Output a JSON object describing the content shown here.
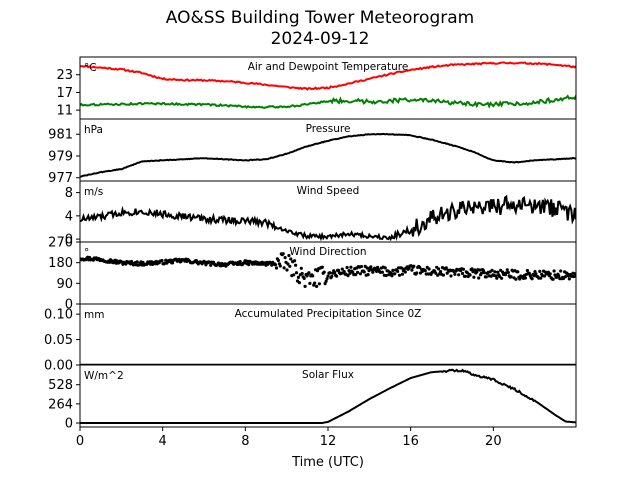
{
  "chart_data": [
    {
      "type": "line",
      "title": "AO&SS Building Tower Meteorogram",
      "subtitle": "2024-09-12",
      "panel_title": "Air and Dewpoint Temperature",
      "unit": "°C",
      "xlabel": "Time (UTC)",
      "xlim": [
        0,
        24
      ],
      "ylim": [
        8,
        29
      ],
      "yticks": [
        11,
        17,
        23
      ],
      "grid": false,
      "colors": [
        "#ff0000",
        "#008000"
      ],
      "x": [
        0,
        1,
        2,
        3,
        4,
        5,
        6,
        7,
        8,
        9,
        10,
        11,
        12,
        13,
        14,
        15,
        16,
        17,
        18,
        19,
        20,
        21,
        22,
        23,
        24
      ],
      "series": [
        {
          "values": [
            26,
            25.4,
            24.8,
            23.6,
            21.6,
            21.2,
            21.1,
            20.8,
            20.3,
            19.6,
            18.8,
            18.2,
            18.6,
            20,
            21.6,
            23.2,
            24.6,
            25.6,
            26.3,
            26.6,
            26.9,
            27,
            26.8,
            26.4,
            25.6
          ]
        },
        {
          "values": [
            12.8,
            12.9,
            13,
            13.2,
            13.2,
            13,
            12.9,
            12.6,
            12.2,
            12,
            12.2,
            12.9,
            14.1,
            14.2,
            13.9,
            14.1,
            14.6,
            14.1,
            13.5,
            12.9,
            12.8,
            13.2,
            13.6,
            14.6,
            15.4
          ]
        }
      ]
    },
    {
      "type": "line",
      "panel_title": "Pressure",
      "unit": "hPa",
      "xlim": [
        0,
        24
      ],
      "ylim": [
        976.7,
        982.4
      ],
      "yticks": [
        977,
        979,
        981
      ],
      "color": "#000000",
      "x": [
        0,
        1,
        2,
        3,
        4,
        5,
        6,
        7,
        8,
        9,
        10,
        11,
        12,
        13,
        14,
        15,
        16,
        17,
        18,
        19,
        20,
        21,
        22,
        23,
        24
      ],
      "values": [
        977.1,
        977.5,
        977.8,
        978.5,
        978.6,
        978.7,
        978.8,
        978.7,
        978.6,
        978.7,
        979.2,
        979.9,
        980.4,
        980.8,
        981.0,
        981.0,
        980.9,
        980.5,
        980.0,
        979.4,
        978.6,
        978.4,
        978.6,
        978.7,
        978.8
      ]
    },
    {
      "type": "line",
      "panel_title": "Wind Speed",
      "unit": "m/s",
      "xlim": [
        0,
        24
      ],
      "ylim": [
        -0.5,
        10
      ],
      "yticks": [
        0,
        4,
        8
      ],
      "color": "#000000",
      "x": [
        0,
        1,
        2,
        3,
        4,
        5,
        6,
        7,
        8,
        9,
        10,
        11,
        12,
        13,
        14,
        15,
        16,
        17,
        18,
        19,
        20,
        21,
        22,
        23,
        24
      ],
      "values": [
        3.4,
        3.8,
        4.6,
        4.8,
        4.3,
        3.9,
        3.5,
        3.3,
        3.1,
        2.9,
        1.4,
        0.5,
        0.4,
        0.9,
        0.5,
        0.3,
        1.6,
        3.3,
        4.6,
        5.5,
        5.6,
        5.9,
        5.6,
        5.3,
        4.3
      ]
    },
    {
      "type": "scatter",
      "panel_title": "Wind Direction",
      "unit": "°",
      "xlim": [
        0,
        24
      ],
      "ylim": [
        0,
        270
      ],
      "yticks": [
        0,
        90,
        180,
        270
      ],
      "color": "#000000",
      "x": [
        0,
        1,
        2,
        3,
        4,
        5,
        6,
        7,
        8,
        9,
        10,
        11,
        12,
        13,
        14,
        15,
        16,
        17,
        18,
        19,
        20,
        21,
        22,
        23,
        24
      ],
      "values": [
        200,
        195,
        180,
        176,
        182,
        190,
        178,
        172,
        180,
        175,
        180,
        102,
        130,
        142,
        145,
        140,
        148,
        142,
        138,
        133,
        131,
        128,
        127,
        125,
        123
      ]
    },
    {
      "type": "area",
      "panel_title": "Accumulated Precipitation Since 0Z",
      "unit": "mm",
      "xlim": [
        0,
        24
      ],
      "ylim": [
        0,
        0.12
      ],
      "yticks": [
        0.0,
        0.05,
        0.1
      ],
      "color": "#000000",
      "x": [
        0,
        24
      ],
      "values": [
        0,
        0
      ]
    },
    {
      "type": "line",
      "panel_title": "Solar Flux",
      "unit": "W/m^2",
      "xlim": [
        0,
        24
      ],
      "ylim": [
        -55,
        800
      ],
      "yticks": [
        0,
        264,
        528
      ],
      "color": "#000000",
      "x": [
        0,
        1,
        2,
        3,
        4,
        5,
        6,
        7,
        8,
        9,
        10,
        11,
        11.7,
        12,
        13,
        14,
        15,
        16,
        17,
        18,
        18.6,
        19,
        20,
        21,
        22,
        23,
        23.5,
        24
      ],
      "values": [
        0,
        0,
        0,
        0,
        0,
        0,
        0,
        0,
        0,
        0,
        0,
        0,
        0,
        15,
        160,
        330,
        480,
        620,
        700,
        725,
        720,
        670,
        600,
        470,
        310,
        110,
        20,
        8
      ]
    }
  ],
  "labels": {
    "xticks": [
      "0",
      "4",
      "8",
      "12",
      "16",
      "20"
    ]
  }
}
